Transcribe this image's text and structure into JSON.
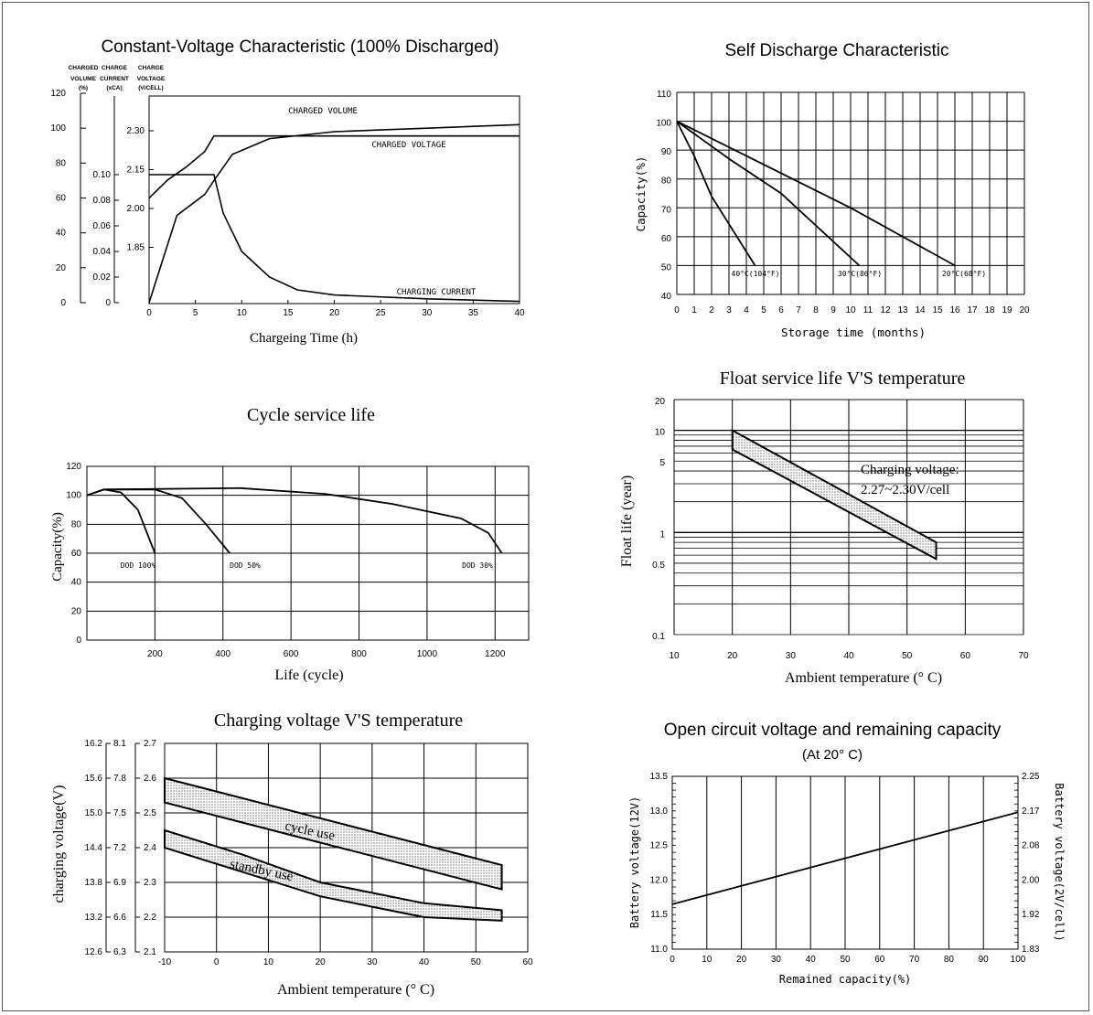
{
  "chart_data": [
    {
      "id": "cv",
      "type": "line",
      "title": "Constant-Voltage Characteristic (100% Discharged)",
      "xlabel": "Chargeing Time (h)",
      "axis_headers": [
        {
          "l1": "CHARGED",
          "l2": "VOLUME",
          "l3": "(%)"
        },
        {
          "l1": "CHARGE",
          "l2": "CURRENT",
          "l3": "(xCA)"
        },
        {
          "l1": "CHARGE",
          "l2": "VOLTAGE",
          "l3": "(V/CELL)"
        }
      ],
      "volume_ticks": [
        "0",
        "20",
        "40",
        "60",
        "80",
        "100",
        "120"
      ],
      "current_ticks": [
        "0",
        "0.02",
        "0.04",
        "0.06",
        "0.08",
        "0.10"
      ],
      "voltage_ticks": [
        "1.85",
        "2.00",
        "2.15",
        "2.30"
      ],
      "x_ticks": [
        "0",
        "5",
        "10",
        "15",
        "20",
        "25",
        "30",
        "35",
        "40"
      ],
      "xlim": [
        0,
        40
      ],
      "series": [
        {
          "name": "CHARGED VOLUME",
          "x": [
            0,
            3,
            6,
            7,
            9,
            13,
            20,
            25,
            30,
            40
          ],
          "y": [
            0,
            50,
            62,
            70,
            85,
            94,
            98,
            99,
            100,
            102
          ]
        },
        {
          "name": "CHARGED VOLTAGE",
          "x": [
            0,
            2,
            4,
            6,
            7,
            40
          ],
          "y": [
            2.04,
            2.11,
            2.16,
            2.22,
            2.28,
            2.28
          ]
        },
        {
          "name": "CHARGING CURRENT",
          "x": [
            0,
            7,
            8,
            10,
            13,
            16,
            20,
            30,
            40
          ],
          "y": [
            0.1,
            0.1,
            0.07,
            0.04,
            0.02,
            0.01,
            0.006,
            0.003,
            0.001
          ]
        }
      ]
    },
    {
      "id": "sd",
      "type": "line",
      "title": "Self Discharge Characteristic",
      "xlabel": "Storage time (months)",
      "ylabel": "Capacity(%)",
      "xlim": [
        0,
        20
      ],
      "ylim": [
        40,
        110
      ],
      "x_ticks": [
        "0",
        "1",
        "2",
        "3",
        "4",
        "5",
        "6",
        "7",
        "8",
        "9",
        "10",
        "11",
        "12",
        "13",
        "14",
        "15",
        "16",
        "17",
        "18",
        "19",
        "20"
      ],
      "y_ticks": [
        "40",
        "50",
        "60",
        "70",
        "80",
        "90",
        "100",
        "110"
      ],
      "series": [
        {
          "name": "40°C(104°F)",
          "x": [
            0,
            1,
            2,
            4.5
          ],
          "y": [
            100,
            88,
            74,
            50
          ]
        },
        {
          "name": "30°C(86°F)",
          "x": [
            0,
            3,
            6,
            10.5
          ],
          "y": [
            100,
            87,
            75,
            50
          ]
        },
        {
          "name": "20°C(68°F)",
          "x": [
            0,
            5,
            10,
            16
          ],
          "y": [
            100,
            85,
            70,
            50
          ]
        }
      ]
    },
    {
      "id": "cycle",
      "type": "line",
      "title": "Cycle service life",
      "xlabel": "Life (cycle)",
      "ylabel": "Capacity(%)",
      "xlim": [
        0,
        1300
      ],
      "ylim": [
        0,
        120
      ],
      "x_ticks": [
        "200",
        "400",
        "600",
        "800",
        "1000",
        "1200"
      ],
      "y_ticks": [
        "0",
        "20",
        "40",
        "60",
        "80",
        "100",
        "120"
      ],
      "series": [
        {
          "name": "DOD 100%",
          "x": [
            0,
            50,
            100,
            150,
            175,
            200
          ],
          "y": [
            100,
            104,
            102,
            90,
            75,
            60
          ]
        },
        {
          "name": "DOD 50%",
          "x": [
            0,
            50,
            200,
            280,
            350,
            420
          ],
          "y": [
            100,
            104,
            104,
            98,
            80,
            60
          ]
        },
        {
          "name": "DOD 30%",
          "x": [
            0,
            50,
            450,
            700,
            900,
            1100,
            1180,
            1220
          ],
          "y": [
            100,
            104,
            105,
            101,
            94,
            84,
            74,
            60
          ]
        }
      ],
      "labels": [
        "DOD 100%",
        "DOD 50%",
        "DOD 30%"
      ]
    },
    {
      "id": "float",
      "type": "area",
      "title": "Float service life V'S temperature",
      "xlabel": "Ambient temperature (° C)",
      "ylabel": "Float life (year)",
      "xlim": [
        10,
        70
      ],
      "ylim": [
        0.1,
        20
      ],
      "y_scale": "log",
      "x_ticks": [
        "10",
        "20",
        "30",
        "40",
        "50",
        "60",
        "70"
      ],
      "y_ticks": [
        "0.1",
        "0.5",
        "1",
        "5",
        "10",
        "20"
      ],
      "band": {
        "upper": [
          [
            20,
            10
          ],
          [
            55,
            0.8
          ]
        ],
        "lower": [
          [
            20,
            6.5
          ],
          [
            55,
            0.55
          ]
        ]
      },
      "annotation": [
        "Charging voltage:",
        "2.27~2.30V/cell"
      ]
    },
    {
      "id": "chgv",
      "type": "area",
      "title": "Charging voltage V'S temperature",
      "xlabel": "Ambient temperature (° C)",
      "ylabel": "charging voltage(V)",
      "xlim": [
        -10,
        60
      ],
      "ylim": [
        2.1,
        2.7
      ],
      "x_ticks": [
        "-10",
        "0",
        "10",
        "20",
        "30",
        "40",
        "50",
        "60"
      ],
      "y_ticks_12v": [
        "12.6",
        "13.2",
        "13.8",
        "14.4",
        "15.0",
        "15.6",
        "16.2"
      ],
      "y_ticks_6v": [
        "6.3",
        "6.6",
        "6.9",
        "7.2",
        "7.5",
        "7.8",
        "8.1"
      ],
      "y_ticks_2v": [
        "2.1",
        "2.2",
        "2.3",
        "2.4",
        "2.5",
        "2.6",
        "2.7"
      ],
      "bands": [
        {
          "name": "cycle use",
          "upper": [
            [
              -10,
              2.6
            ],
            [
              55,
              2.35
            ]
          ],
          "lower": [
            [
              -10,
              2.53
            ],
            [
              55,
              2.28
            ]
          ]
        },
        {
          "name": "standby use",
          "upper": [
            [
              -10,
              2.45
            ],
            [
              5,
              2.38
            ],
            [
              20,
              2.3
            ],
            [
              30,
              2.27
            ],
            [
              40,
              2.24
            ],
            [
              55,
              2.22
            ]
          ],
          "lower": [
            [
              -10,
              2.4
            ],
            [
              5,
              2.33
            ],
            [
              20,
              2.26
            ],
            [
              30,
              2.23
            ],
            [
              40,
              2.2
            ],
            [
              55,
              2.19
            ]
          ]
        }
      ]
    },
    {
      "id": "ocv",
      "type": "line",
      "title": "Open circuit voltage and remaining capacity",
      "subtitle": "(At 20° C)",
      "xlabel": "Remained capacity(%)",
      "ylabel": "Battery voltage(12V)",
      "ylabel_right": "Battery voltage(2V/cell)",
      "xlim": [
        0,
        100
      ],
      "ylim": [
        11.0,
        13.5
      ],
      "x_ticks": [
        "0",
        "10",
        "20",
        "30",
        "40",
        "50",
        "60",
        "70",
        "80",
        "90",
        "100"
      ],
      "y_ticks": [
        "11.0",
        "11.5",
        "12.0",
        "12.5",
        "13.0",
        "13.5"
      ],
      "y_ticks_right": [
        "1.83",
        "1.92",
        "2.00",
        "2.08",
        "2.17",
        "2.25"
      ],
      "series": [
        {
          "x": [
            0,
            100
          ],
          "y": [
            11.65,
            12.98
          ]
        }
      ]
    }
  ]
}
